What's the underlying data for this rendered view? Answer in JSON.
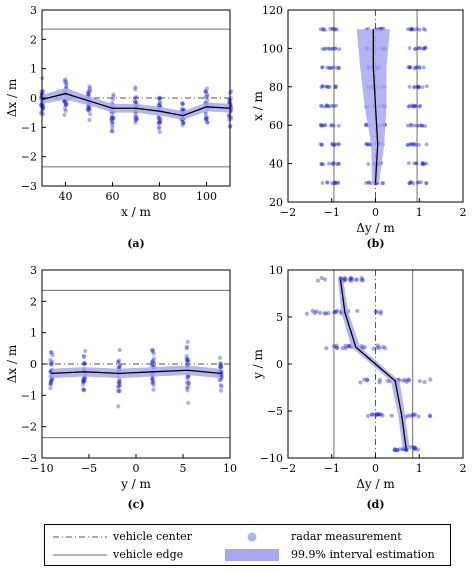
{
  "chart_data": [
    {
      "panel_label": "(a)",
      "type": "scatter",
      "xlabel": "x / m",
      "ylabel": "Δx / m",
      "xlim": [
        30,
        110
      ],
      "ylim": [
        -3,
        3
      ],
      "xticks": [
        40,
        60,
        80,
        100
      ],
      "yticks": [
        -3,
        -2,
        -1,
        0,
        1,
        2,
        3
      ],
      "axis_orientation": "horizontal",
      "vehicle_center": [
        0
      ],
      "vehicle_edge": [
        2.35,
        -2.35
      ],
      "estimate": {
        "x": [
          30,
          40,
          50,
          60,
          70,
          80,
          90,
          100,
          110
        ],
        "y": [
          -0.05,
          0.15,
          -0.1,
          -0.35,
          -0.35,
          -0.45,
          -0.6,
          -0.3,
          -0.35
        ],
        "halfwidth": [
          0.15,
          0.2,
          0.15,
          0.15,
          0.15,
          0.15,
          0.15,
          0.15,
          0.15
        ]
      },
      "measurements": {
        "positions": [
          30,
          40,
          50,
          60,
          70,
          80,
          90,
          100,
          110
        ],
        "center": [
          -0.05,
          0.15,
          -0.1,
          -0.35,
          -0.35,
          -0.45,
          -0.6,
          -0.3,
          -0.35
        ],
        "spread": [
          0.7,
          0.6,
          0.6,
          0.7,
          0.6,
          0.6,
          0.6,
          0.6,
          0.6
        ]
      }
    },
    {
      "panel_label": "(b)",
      "type": "scatter",
      "xlabel": "Δy / m",
      "ylabel": "x / m",
      "xlim": [
        -2,
        2
      ],
      "ylim": [
        20,
        120
      ],
      "xticks": [
        -2,
        -1,
        0,
        1,
        2
      ],
      "yticks": [
        20,
        40,
        60,
        80,
        100,
        120
      ],
      "axis_orientation": "vertical",
      "vehicle_center": [
        0
      ],
      "vehicle_edge": [
        -0.95,
        0.95
      ],
      "estimate": {
        "y": [
          30,
          50,
          70,
          90,
          110
        ],
        "x": [
          0.0,
          0.05,
          0.0,
          -0.05,
          -0.05
        ],
        "halfwidth": [
          0.08,
          0.15,
          0.25,
          0.3,
          0.38
        ]
      },
      "measurements": {
        "positions": [
          30,
          40,
          50,
          60,
          70,
          80,
          90,
          100,
          110
        ],
        "groups": [
          -1.05,
          0.0,
          0.95
        ]
      }
    },
    {
      "panel_label": "(c)",
      "type": "scatter",
      "xlabel": "y / m",
      "ylabel": "Δx / m",
      "xlim": [
        -10,
        10
      ],
      "ylim": [
        -3,
        3
      ],
      "xticks": [
        -10,
        -5,
        0,
        5,
        10
      ],
      "yticks": [
        -3,
        -2,
        -1,
        0,
        1,
        2,
        3
      ],
      "axis_orientation": "horizontal",
      "vehicle_center": [
        0
      ],
      "vehicle_edge": [
        2.35,
        -2.35
      ],
      "estimate": {
        "x": [
          -9,
          -5.5,
          -1.8,
          1.8,
          5.5,
          9
        ],
        "y": [
          -0.3,
          -0.25,
          -0.3,
          -0.25,
          -0.2,
          -0.3
        ],
        "halfwidth": [
          0.15,
          0.15,
          0.15,
          0.15,
          0.15,
          0.15
        ]
      },
      "measurements": {
        "positions": [
          -9,
          -5.5,
          -1.8,
          1.8,
          5.5,
          9
        ],
        "center": [
          -0.3,
          -0.25,
          -0.3,
          -0.25,
          -0.2,
          -0.3
        ],
        "spread": [
          0.7,
          0.7,
          0.8,
          0.8,
          0.8,
          0.7
        ]
      }
    },
    {
      "panel_label": "(d)",
      "type": "scatter",
      "xlabel": "Δy / m",
      "ylabel": "y / m",
      "xlim": [
        -2,
        2
      ],
      "ylim": [
        -10,
        10
      ],
      "xticks": [
        -2,
        -1,
        0,
        1,
        2
      ],
      "yticks": [
        -10,
        -5,
        0,
        5,
        10
      ],
      "axis_orientation": "vertical",
      "vehicle_center": [
        0
      ],
      "vehicle_edge": [
        -0.95,
        0.85
      ],
      "estimate": {
        "y": [
          9,
          5.5,
          1.8,
          -1.8,
          -5.5,
          -9
        ],
        "x": [
          -0.8,
          -0.7,
          -0.45,
          0.45,
          0.6,
          0.7
        ],
        "halfwidth": [
          0.06,
          0.08,
          0.1,
          0.1,
          0.08,
          0.08
        ]
      },
      "measurements": {
        "positions": [
          9,
          5.5,
          1.8,
          -1.8,
          -5.5,
          -9
        ],
        "center": [
          -0.8,
          -0.7,
          -0.45,
          0.45,
          0.6,
          0.7
        ],
        "spread": [
          0.55,
          0.9,
          0.7,
          0.9,
          0.8,
          0.3
        ]
      }
    }
  ],
  "style": {
    "measurement_color": "#2323d2",
    "band_color": "#a8a8f0",
    "line_color": "#000000",
    "edge_color": "#6f6f6f"
  },
  "legend": {
    "vehicle_center": "vehicle center",
    "vehicle_edge": "vehicle edge",
    "radar_measurement": "radar measurement",
    "interval_estimation": "99.9% interval estimation"
  }
}
